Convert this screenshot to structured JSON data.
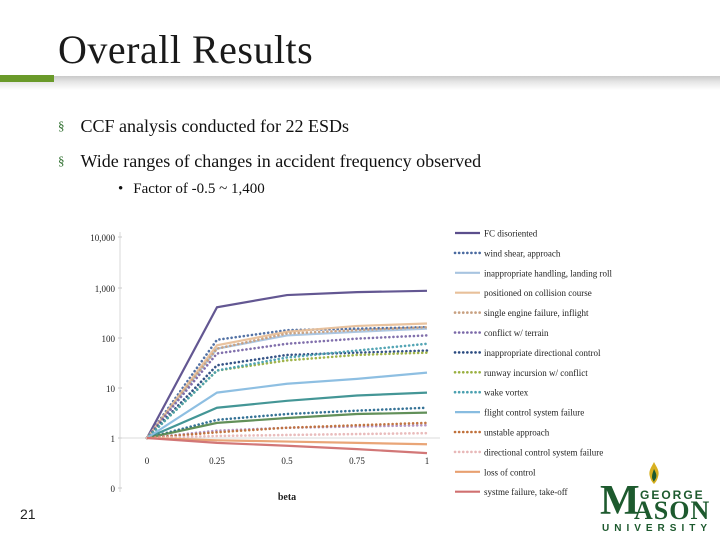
{
  "slide": {
    "title": "Overall Results",
    "bullets": [
      "CCF analysis conducted for 22 ESDs",
      "Wide ranges of changes in accident frequency observed"
    ],
    "sub_bullets": [
      "Factor of -0.5 ~ 1,400"
    ],
    "slide_number": "21",
    "bullet_mark": "§",
    "sub_bullet_mark": "•"
  },
  "logo": {
    "text_george": "GEORGE",
    "text_m": "M",
    "text_ason": "ASON",
    "text_university": "UNIVERSITY",
    "color": "#1d5a2e"
  },
  "chart_data": {
    "type": "line",
    "xlabel": "beta",
    "ylabel": "",
    "x": [
      0,
      0.25,
      0.5,
      0.75,
      1
    ],
    "x_tick_labels": [
      "0",
      "0.25",
      "0.5",
      "0.75",
      "1"
    ],
    "y_scale": "log",
    "y_tick_labels": [
      "10,000",
      "1,000",
      "100",
      "10",
      "1",
      "0"
    ],
    "legend_position": "right",
    "series": [
      {
        "name": "FC disoriented",
        "color": "#5b4e8c",
        "dash": "solid",
        "values": [
          1,
          400,
          700,
          800,
          850
        ]
      },
      {
        "name": "wind shear, approach",
        "color": "#4a6aa0",
        "dash": "dotted",
        "values": [
          1,
          90,
          140,
          150,
          160
        ]
      },
      {
        "name": "inappropriate handling, landing roll",
        "color": "#a8c4e0",
        "dash": "solid",
        "values": [
          1,
          60,
          110,
          130,
          150
        ]
      },
      {
        "name": "positioned on collision course",
        "color": "#e8c09a",
        "dash": "solid",
        "values": [
          1,
          70,
          130,
          170,
          190
        ]
      },
      {
        "name": "single engine failure, inflight",
        "color": "#c8a080",
        "dash": "dotted",
        "values": [
          1,
          60,
          120,
          140,
          160
        ]
      },
      {
        "name": "conflict w/ terrain",
        "color": "#7a68a8",
        "dash": "dotted",
        "values": [
          1,
          48,
          75,
          95,
          110
        ]
      },
      {
        "name": "inappropriate directional control",
        "color": "#2a4a80",
        "dash": "dotted",
        "values": [
          1,
          28,
          45,
          50,
          55
        ]
      },
      {
        "name": "runway incursion w/ conflict",
        "color": "#9ab040",
        "dash": "dotted",
        "values": [
          1,
          22,
          35,
          45,
          50
        ]
      },
      {
        "name": "wake vortex",
        "color": "#4aa0b0",
        "dash": "dotted",
        "values": [
          1,
          22,
          40,
          55,
          75
        ]
      },
      {
        "name": "flight control system failure",
        "color": "#88bce0",
        "dash": "solid",
        "values": [
          1,
          8,
          12,
          15,
          20
        ]
      },
      {
        "name": "unstable approach",
        "color": "#c0703a",
        "dash": "dotted",
        "values": [
          1,
          1.3,
          1.6,
          1.8,
          2
        ]
      },
      {
        "name": "directional control system failure",
        "color": "#e8b8b8",
        "dash": "dotted",
        "values": [
          1,
          1.1,
          1.15,
          1.2,
          1.25
        ]
      },
      {
        "name": "loss of control",
        "color": "#e8a070",
        "dash": "solid",
        "values": [
          1,
          0.9,
          0.85,
          0.8,
          0.75
        ]
      },
      {
        "name": "systme failure, take-off",
        "color": "#d07070",
        "dash": "solid",
        "values": [
          1,
          0.8,
          0.7,
          0.6,
          0.5
        ]
      }
    ],
    "extra_series_colors": [
      "#3a9090",
      "#2a6a90",
      "#5a8a50",
      "#b090c0"
    ],
    "extra_series_values": [
      [
        1,
        4,
        5.5,
        7,
        8
      ],
      [
        1,
        2.3,
        3,
        3.5,
        4
      ],
      [
        1,
        2,
        2.5,
        3,
        3.2
      ],
      [
        1,
        1.4,
        1.6,
        1.7,
        1.8
      ]
    ]
  }
}
